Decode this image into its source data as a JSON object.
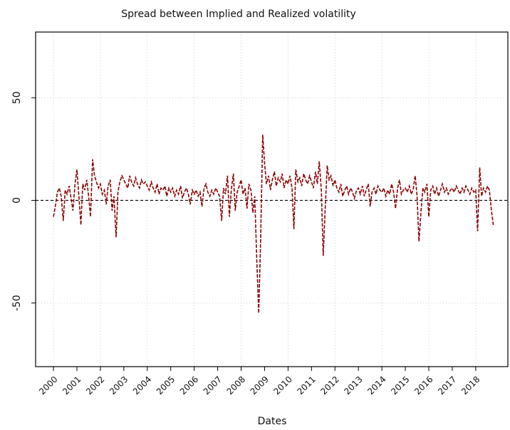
{
  "chart_data": {
    "type": "line",
    "title": "Spread between Implied and Realized volatility",
    "xlabel": "Dates",
    "x": [
      2000,
      2000.08,
      2000.17,
      2000.25,
      2000.33,
      2000.42,
      2000.5,
      2000.58,
      2000.67,
      2000.75,
      2000.83,
      2000.92,
      2001,
      2001.08,
      2001.17,
      2001.25,
      2001.33,
      2001.42,
      2001.5,
      2001.58,
      2001.67,
      2001.75,
      2001.83,
      2001.92,
      2002,
      2002.08,
      2002.17,
      2002.25,
      2002.33,
      2002.42,
      2002.5,
      2002.58,
      2002.67,
      2002.75,
      2002.83,
      2002.92,
      2003,
      2003.08,
      2003.17,
      2003.25,
      2003.33,
      2003.42,
      2003.5,
      2003.58,
      2003.67,
      2003.75,
      2003.83,
      2003.92,
      2004,
      2004.08,
      2004.17,
      2004.25,
      2004.33,
      2004.42,
      2004.5,
      2004.58,
      2004.67,
      2004.75,
      2004.83,
      2004.92,
      2005,
      2005.08,
      2005.17,
      2005.25,
      2005.33,
      2005.42,
      2005.5,
      2005.58,
      2005.67,
      2005.75,
      2005.83,
      2005.92,
      2006,
      2006.08,
      2006.17,
      2006.25,
      2006.33,
      2006.42,
      2006.5,
      2006.58,
      2006.67,
      2006.75,
      2006.83,
      2006.92,
      2007,
      2007.08,
      2007.17,
      2007.25,
      2007.33,
      2007.42,
      2007.5,
      2007.58,
      2007.67,
      2007.75,
      2007.83,
      2007.92,
      2008,
      2008.08,
      2008.17,
      2008.25,
      2008.33,
      2008.42,
      2008.5,
      2008.58,
      2008.67,
      2008.75,
      2008.83,
      2008.92,
      2009,
      2009.08,
      2009.17,
      2009.25,
      2009.33,
      2009.42,
      2009.5,
      2009.58,
      2009.67,
      2009.75,
      2009.83,
      2009.92,
      2010,
      2010.08,
      2010.17,
      2010.25,
      2010.33,
      2010.42,
      2010.5,
      2010.58,
      2010.67,
      2010.75,
      2010.83,
      2010.92,
      2011,
      2011.08,
      2011.17,
      2011.25,
      2011.33,
      2011.42,
      2011.5,
      2011.58,
      2011.67,
      2011.75,
      2011.83,
      2011.92,
      2012,
      2012.08,
      2012.17,
      2012.25,
      2012.33,
      2012.42,
      2012.5,
      2012.58,
      2012.67,
      2012.75,
      2012.83,
      2012.92,
      2013,
      2013.08,
      2013.17,
      2013.25,
      2013.33,
      2013.42,
      2013.5,
      2013.58,
      2013.67,
      2013.75,
      2013.83,
      2013.92,
      2014,
      2014.08,
      2014.17,
      2014.25,
      2014.33,
      2014.42,
      2014.5,
      2014.58,
      2014.67,
      2014.75,
      2014.83,
      2014.92,
      2015,
      2015.08,
      2015.17,
      2015.25,
      2015.33,
      2015.42,
      2015.5,
      2015.58,
      2015.67,
      2015.75,
      2015.83,
      2015.92,
      2016,
      2016.08,
      2016.17,
      2016.25,
      2016.33,
      2016.42,
      2016.5,
      2016.58,
      2016.67,
      2016.75,
      2016.83,
      2016.92,
      2017,
      2017.08,
      2017.17,
      2017.25,
      2017.33,
      2017.42,
      2017.5,
      2017.58,
      2017.67,
      2017.75,
      2017.83,
      2017.92,
      2018,
      2018.08,
      2018.17,
      2018.25,
      2018.33,
      2018.42,
      2018.5,
      2018.58,
      2018.67,
      2018.75
    ],
    "series": [
      {
        "color": "#8b0000",
        "values": [
          -8,
          -3,
          4,
          6,
          2,
          -10,
          5,
          3,
          7,
          1,
          -5,
          8,
          15,
          3,
          -12,
          8,
          5,
          10,
          2,
          -8,
          20,
          12,
          9,
          6,
          8,
          3,
          5,
          -2,
          7,
          10,
          -5,
          2,
          -18,
          4,
          9,
          12,
          10,
          8,
          6,
          12,
          9,
          7,
          11,
          8,
          6,
          10,
          8,
          9,
          7,
          5,
          9,
          6,
          4,
          8,
          3,
          6,
          5,
          7,
          2,
          6,
          4,
          6,
          2,
          5,
          3,
          7,
          1,
          4,
          6,
          3,
          -2,
          5,
          3,
          5,
          2,
          4,
          -3,
          6,
          8,
          4,
          2,
          5,
          3,
          6,
          4,
          2,
          -10,
          6,
          3,
          12,
          -8,
          5,
          13,
          -5,
          4,
          7,
          10,
          3,
          6,
          -4,
          8,
          5,
          -6,
          2,
          -30,
          -55,
          -20,
          32,
          18,
          8,
          12,
          5,
          10,
          14,
          7,
          11,
          9,
          13,
          6,
          10,
          8,
          12,
          6,
          -14,
          15,
          9,
          11,
          7,
          13,
          10,
          8,
          12,
          9,
          6,
          14,
          8,
          19,
          5,
          -27,
          -5,
          17,
          10,
          12,
          7,
          10,
          6,
          4,
          8,
          2,
          5,
          7,
          3,
          6,
          4,
          1,
          5,
          6,
          3,
          7,
          2,
          5,
          8,
          -3,
          4,
          6,
          3,
          7,
          5,
          4,
          6,
          2,
          5,
          3,
          8,
          4,
          -4,
          6,
          10,
          3,
          5,
          6,
          4,
          7,
          3,
          5,
          12,
          2,
          -20,
          -5,
          6,
          4,
          8,
          -8,
          5,
          7,
          3,
          6,
          2,
          5,
          8,
          4,
          6,
          3,
          5,
          6,
          4,
          7,
          5,
          3,
          6,
          4,
          7,
          5,
          3,
          6,
          4,
          5,
          -15,
          16,
          2,
          6,
          4,
          7,
          5,
          -5,
          -12
        ]
      }
    ],
    "xlim": [
      1999.24,
      2019.37
    ],
    "xticks": [
      2000,
      2001,
      2002,
      2003,
      2004,
      2005,
      2006,
      2007,
      2008,
      2009,
      2010,
      2011,
      2012,
      2013,
      2014,
      2015,
      2016,
      2017,
      2018
    ],
    "ylim": [
      -81,
      82
    ],
    "yticks": [
      -50,
      0,
      50
    ],
    "hline": 0,
    "grid": true
  }
}
